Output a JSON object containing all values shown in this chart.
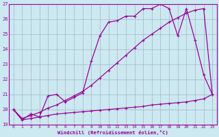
{
  "xlabel": "Windchill (Refroidissement éolien,°C)",
  "xlim": [
    -0.5,
    23.5
  ],
  "ylim": [
    19,
    27
  ],
  "yticks": [
    19,
    20,
    21,
    22,
    23,
    24,
    25,
    26,
    27
  ],
  "xticks": [
    0,
    1,
    2,
    3,
    4,
    5,
    6,
    7,
    8,
    9,
    10,
    11,
    12,
    13,
    14,
    15,
    16,
    17,
    18,
    19,
    20,
    21,
    22,
    23
  ],
  "line_color": "#990099",
  "bg_color": "#cce8f0",
  "grid_color": "#99aabb",
  "line1_y": [
    20.0,
    19.3,
    19.7,
    19.5,
    20.9,
    21.0,
    20.5,
    20.8,
    21.1,
    23.2,
    24.9,
    25.8,
    25.9,
    26.2,
    26.2,
    26.7,
    26.7,
    27.0,
    26.7,
    24.9,
    26.7,
    24.6,
    22.3,
    21.0
  ],
  "line2_y": [
    20.0,
    19.4,
    19.6,
    19.8,
    20.1,
    20.3,
    20.6,
    20.9,
    21.2,
    21.6,
    22.1,
    22.6,
    23.1,
    23.6,
    24.1,
    24.6,
    25.0,
    25.4,
    25.8,
    26.1,
    26.4,
    26.6,
    26.7,
    21.0
  ],
  "line3_y": [
    20.0,
    19.3,
    19.4,
    19.5,
    19.6,
    19.7,
    19.75,
    19.8,
    19.85,
    19.9,
    19.95,
    20.0,
    20.05,
    20.1,
    20.15,
    20.2,
    20.3,
    20.35,
    20.4,
    20.45,
    20.5,
    20.6,
    20.7,
    21.0
  ]
}
